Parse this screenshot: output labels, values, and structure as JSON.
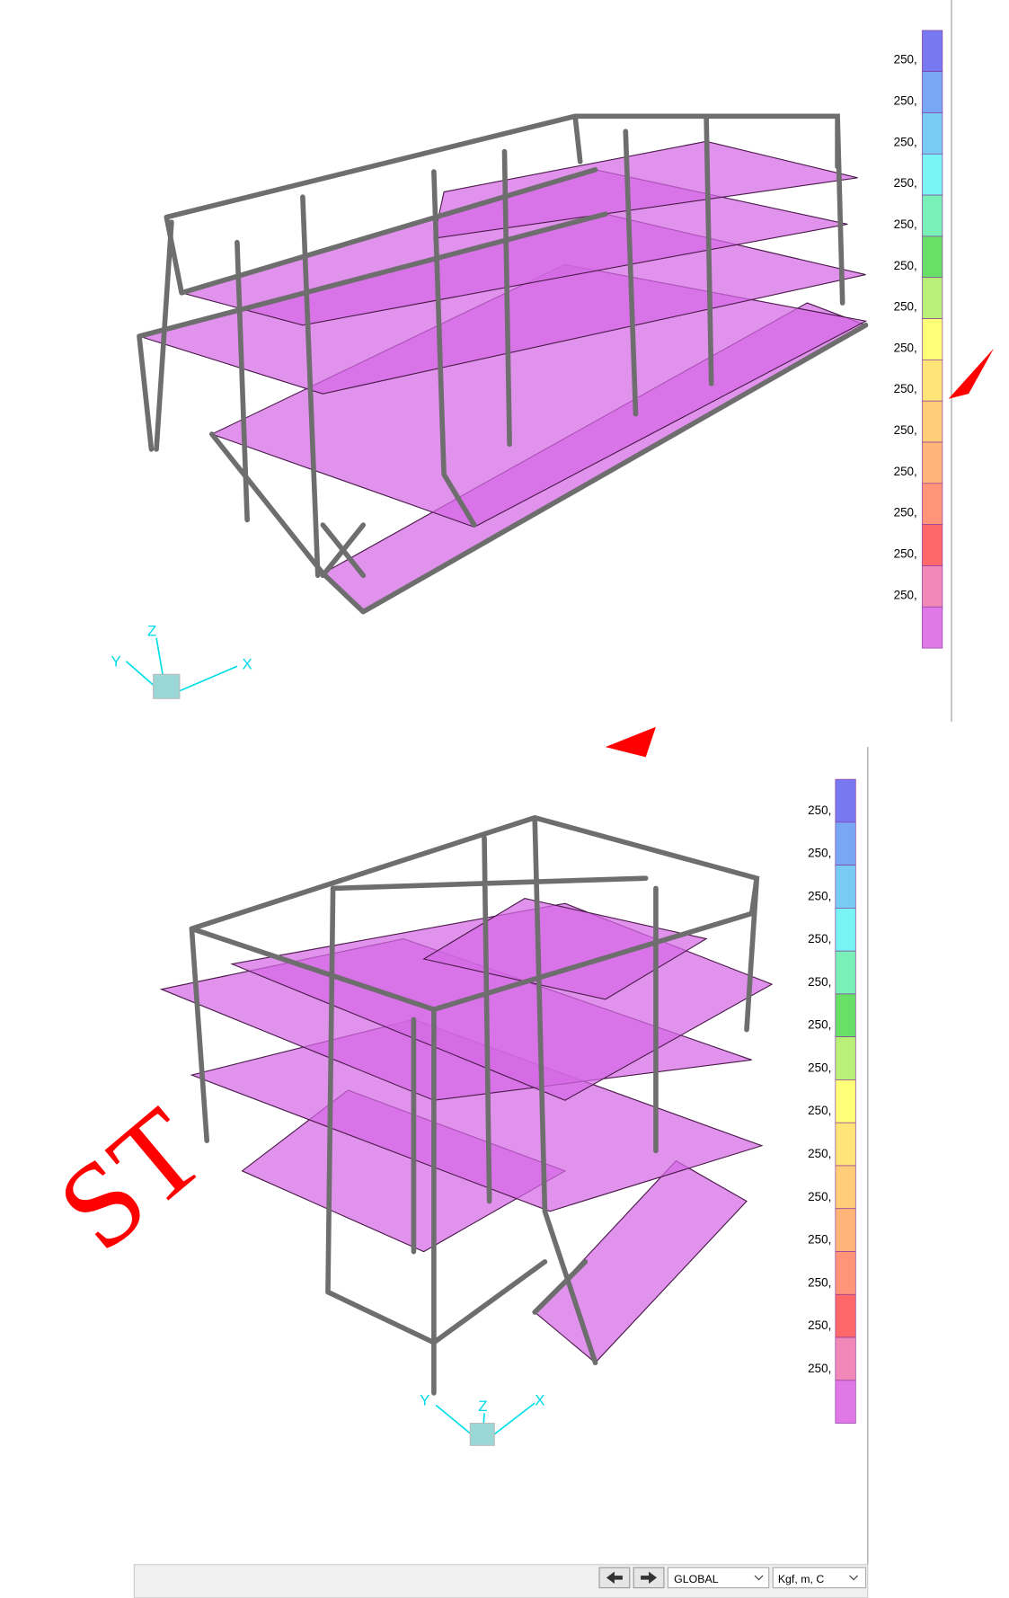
{
  "top_view": {
    "legend_labels": [
      "250,",
      "250,",
      "250,",
      "250,",
      "250,",
      "250,",
      "250,",
      "250,",
      "250,",
      "250,",
      "250,",
      "250,",
      "250,",
      "250,"
    ],
    "axes": {
      "x": "X",
      "y": "Y",
      "z": "Z"
    }
  },
  "bottom_view": {
    "legend_labels": [
      "250,",
      "250,",
      "250,",
      "250,",
      "250,",
      "250,",
      "250,",
      "250,",
      "250,",
      "250,",
      "250,",
      "250,",
      "250,",
      "250,"
    ],
    "axes": {
      "x": "X",
      "y": "Y",
      "z": "Z"
    }
  },
  "watermark": "ST",
  "status_bar": {
    "coordinate_system": "GLOBAL",
    "units": "Kgf, m, C"
  }
}
